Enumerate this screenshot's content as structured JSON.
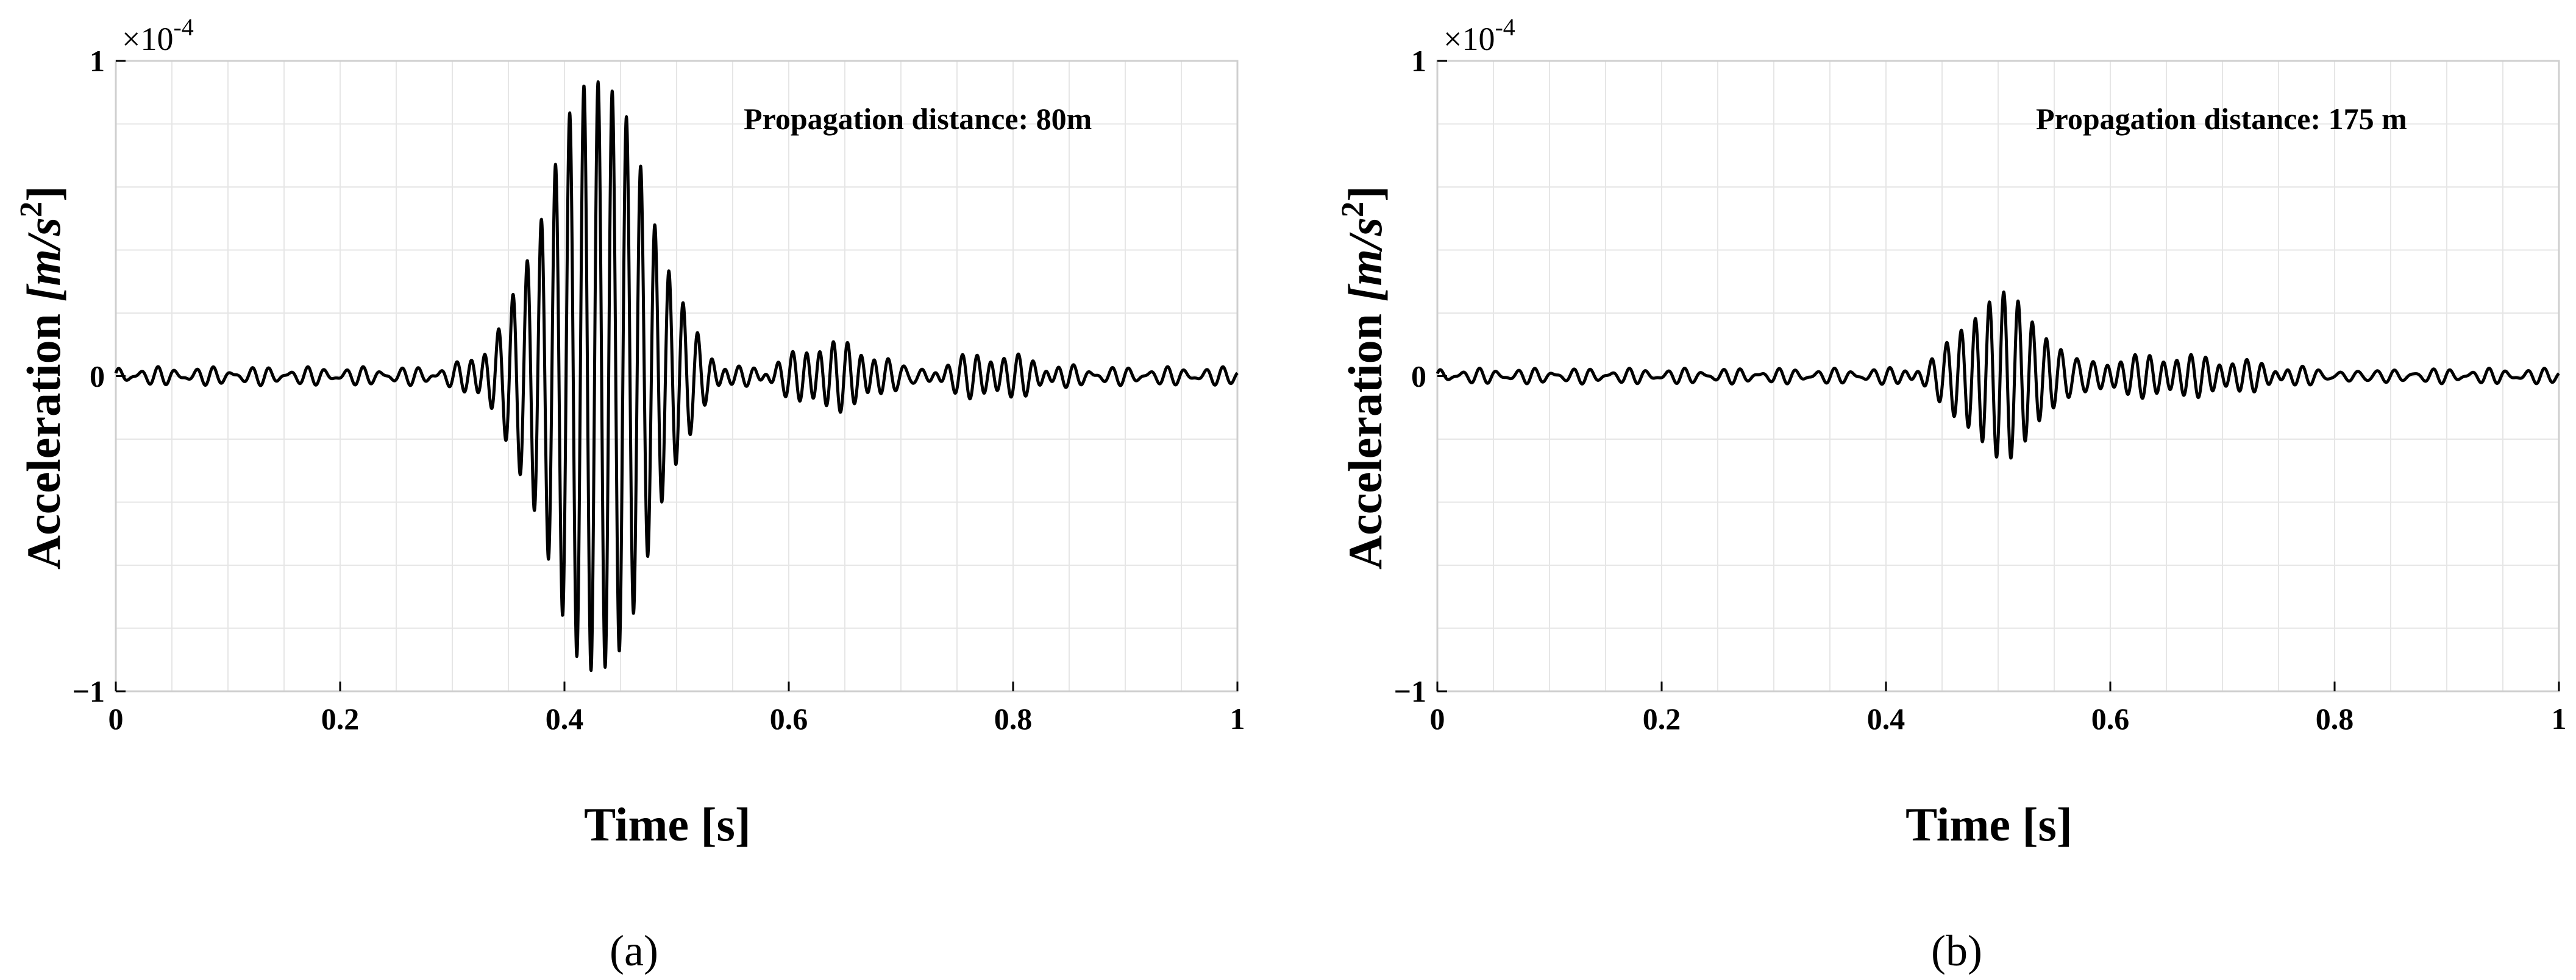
{
  "chart_data": [
    {
      "type": "line",
      "panel_label": "(a)",
      "annotation": "Propagation distance: 80m",
      "xlabel": "Time [s]",
      "ylabel_text": "Acceleration",
      "ylabel_unit": "[m/s",
      "ylabel_sup": "2",
      "ylabel_close": "]",
      "exponent_label": "×10",
      "exponent_power": "-4",
      "xlim": [
        0,
        1
      ],
      "ylim": [
        -1,
        1
      ],
      "xticks": [
        "0",
        "0.2",
        "0.4",
        "0.6",
        "0.8",
        "1"
      ],
      "yticks": [
        "−1",
        "0",
        "1"
      ],
      "grid": true,
      "signal": {
        "background_amplitude": 0.03,
        "background_frequency_hz": 60,
        "packets": [
          {
            "center_s": 0.43,
            "width_s": 0.045,
            "amplitude": 0.95,
            "frequency_hz": 79
          },
          {
            "center_s": 0.64,
            "width_s": 0.04,
            "amplitude": 0.11,
            "frequency_hz": 82
          },
          {
            "center_s": 0.78,
            "width_s": 0.04,
            "amplitude": 0.05,
            "frequency_hz": 80
          }
        ]
      }
    },
    {
      "type": "line",
      "panel_label": "(b)",
      "annotation": "Propagation distance: 175 m",
      "xlabel": "Time [s]",
      "ylabel_text": "Acceleration",
      "ylabel_unit": "[m/s",
      "ylabel_sup": "2",
      "ylabel_close": "]",
      "exponent_label": "×10",
      "exponent_power": "-4",
      "xlim": [
        0,
        1
      ],
      "ylim": [
        -1,
        1
      ],
      "xticks": [
        "0",
        "0.2",
        "0.4",
        "0.6",
        "0.8",
        "1"
      ],
      "yticks": [
        "−1",
        "0",
        "1"
      ],
      "grid": true,
      "signal": {
        "background_amplitude": 0.025,
        "background_frequency_hz": 60,
        "packets": [
          {
            "center_s": 0.505,
            "width_s": 0.035,
            "amplitude": 0.27,
            "frequency_hz": 79
          },
          {
            "center_s": 0.66,
            "width_s": 0.09,
            "amplitude": 0.05,
            "frequency_hz": 80
          }
        ]
      }
    }
  ]
}
